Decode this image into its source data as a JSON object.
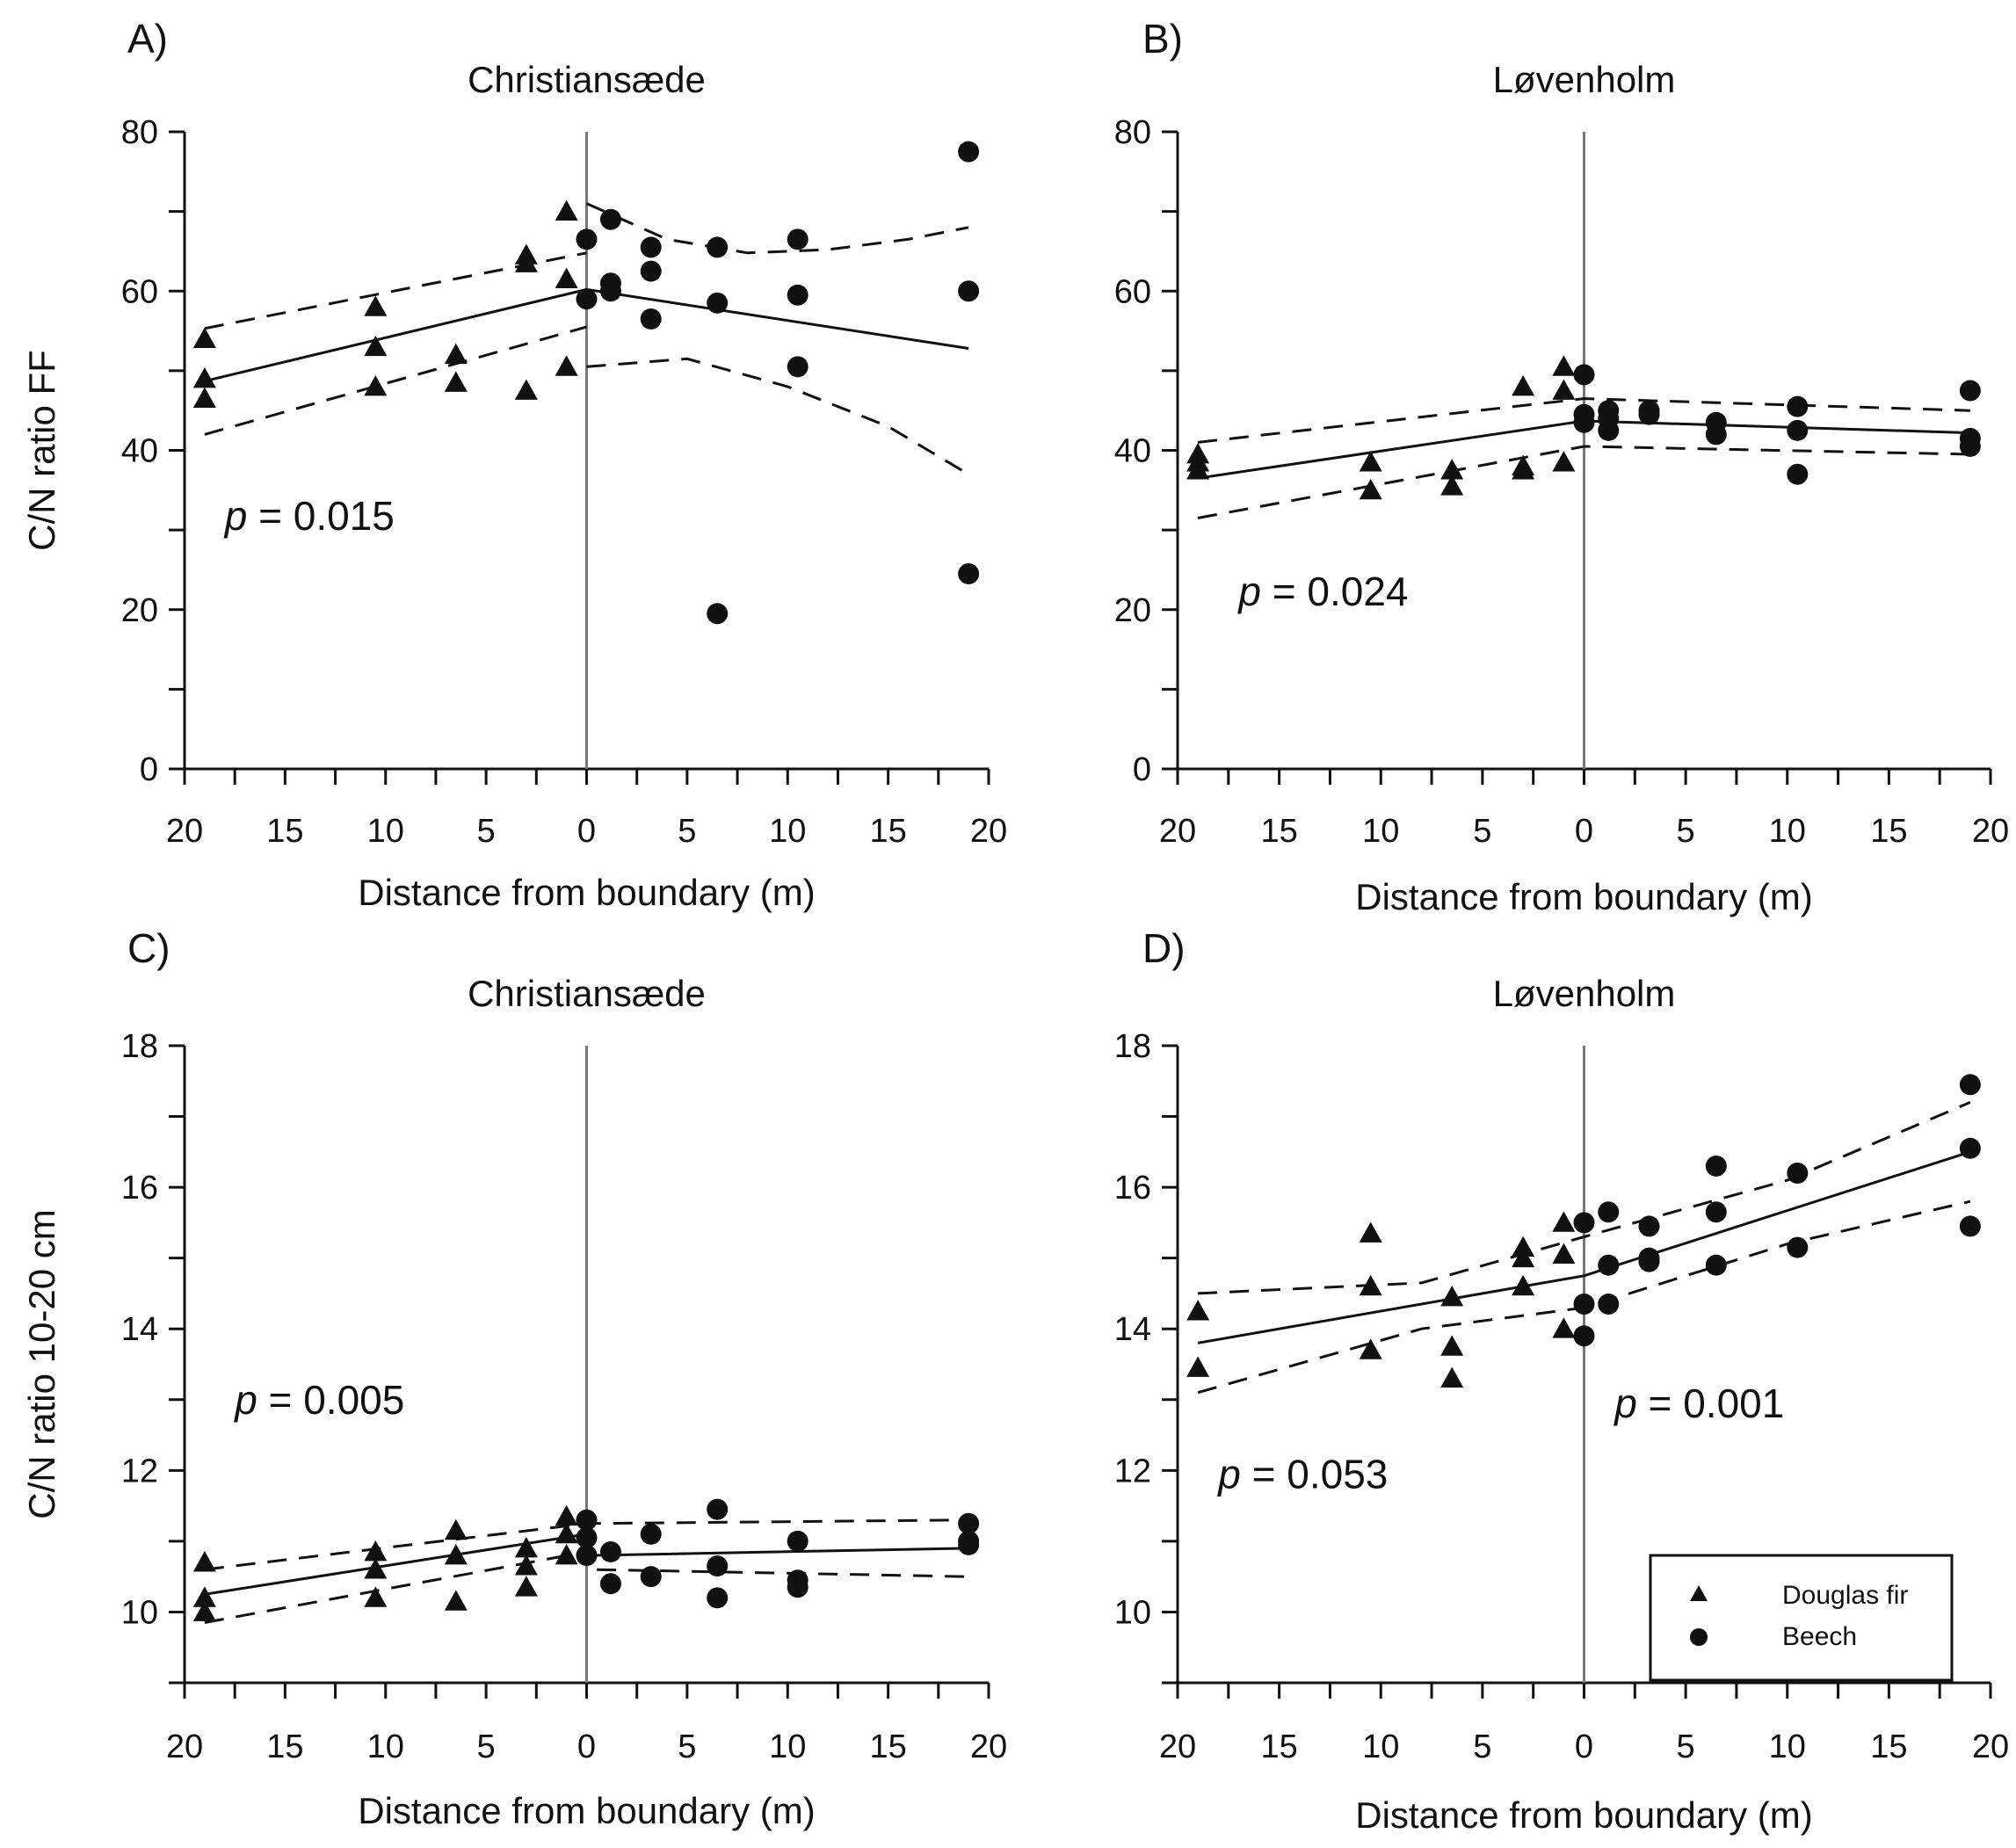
{
  "chart_data": [
    {
      "type": "scatter",
      "panel_label": "A)",
      "title": "Christiansæde",
      "ylabel": "C/N ratio FF",
      "xlabel": "Distance from boundary  (m)",
      "ylim": [
        0,
        80
      ],
      "yticks": [
        0,
        20,
        40,
        60,
        80
      ],
      "xlim": [
        -20,
        20
      ],
      "xtick_labels": [
        "20",
        "15",
        "10",
        "5",
        "0",
        "5",
        "10",
        "15",
        "20"
      ],
      "p_labels": [
        {
          "prefix": "p",
          "text": " = 0.015",
          "x": -18,
          "y": 30
        }
      ],
      "series": [
        {
          "name": "Douglas fir",
          "marker": "triangle",
          "points": [
            [
              -19,
              54
            ],
            [
              -19,
              49
            ],
            [
              -19,
              46.5
            ],
            [
              -10.5,
              58
            ],
            [
              -10.5,
              53
            ],
            [
              -10.5,
              48
            ],
            [
              -6.5,
              52
            ],
            [
              -6.5,
              48.5
            ],
            [
              -3,
              64.5
            ],
            [
              -3,
              63.5
            ],
            [
              -3,
              47.5
            ],
            [
              -1,
              70
            ],
            [
              -1,
              61.5
            ],
            [
              -1,
              50.5
            ]
          ]
        },
        {
          "name": "Beech",
          "marker": "circle",
          "points": [
            [
              0,
              66.5
            ],
            [
              0,
              59
            ],
            [
              1.2,
              69
            ],
            [
              1.2,
              61
            ],
            [
              1.2,
              60
            ],
            [
              3.2,
              65.5
            ],
            [
              3.2,
              62.5
            ],
            [
              3.2,
              56.5
            ],
            [
              6.5,
              65.5
            ],
            [
              6.5,
              58.5
            ],
            [
              6.5,
              19.5
            ],
            [
              10.5,
              66.5
            ],
            [
              10.5,
              59.5
            ],
            [
              10.5,
              50.5
            ],
            [
              19,
              77.5
            ],
            [
              19,
              60
            ],
            [
              19,
              24.5
            ]
          ]
        }
      ],
      "fits": [
        {
          "style": "solid",
          "points": [
            [
              -19,
              48.7
            ],
            [
              0,
              60.2
            ],
            [
              19,
              52.8
            ]
          ]
        },
        {
          "style": "dashed",
          "points": [
            [
              -19,
              55.3
            ],
            [
              0,
              64.8
            ]
          ]
        },
        {
          "style": "dashed",
          "points": [
            [
              -19,
              42
            ],
            [
              0,
              55.5
            ]
          ]
        },
        {
          "style": "dashed",
          "points": [
            [
              0,
              71
            ],
            [
              4,
              66.5
            ],
            [
              8,
              64.8
            ],
            [
              12,
              65.2
            ],
            [
              16,
              66.5
            ],
            [
              19,
              68
            ]
          ]
        },
        {
          "style": "dashed",
          "points": [
            [
              0,
              50.5
            ],
            [
              5,
              51.5
            ],
            [
              10,
              48
            ],
            [
              15,
              43
            ],
            [
              19,
              37
            ]
          ]
        }
      ]
    },
    {
      "type": "scatter",
      "panel_label": "B)",
      "title": "Løvenholm",
      "xlabel": "Distance from boundary  (m)",
      "ylim": [
        0,
        80
      ],
      "yticks": [
        0,
        20,
        40,
        60,
        80
      ],
      "xlim": [
        -20,
        20
      ],
      "xtick_labels": [
        "20",
        "15",
        "10",
        "5",
        "0",
        "5",
        "10",
        "15",
        "20"
      ],
      "p_labels": [
        {
          "prefix": "p",
          "text": " = 0.024",
          "x": -17,
          "y": 20.5
        }
      ],
      "series": [
        {
          "name": "Douglas fir",
          "marker": "triangle",
          "points": [
            [
              -19,
              39.5
            ],
            [
              -19,
              38.5
            ],
            [
              -19,
              37.5
            ],
            [
              -10.5,
              38.5
            ],
            [
              -10.5,
              35
            ],
            [
              -6.5,
              37.5
            ],
            [
              -6.5,
              35.5
            ],
            [
              -3,
              48
            ],
            [
              -3,
              38
            ],
            [
              -3,
              37.5
            ],
            [
              -1,
              50.5
            ],
            [
              -1,
              47.5
            ],
            [
              -1,
              38.5
            ]
          ]
        },
        {
          "name": "Beech",
          "marker": "circle",
          "points": [
            [
              0,
              49.5
            ],
            [
              0,
              44.5
            ],
            [
              0,
              43.5
            ],
            [
              1.2,
              45
            ],
            [
              1.2,
              44
            ],
            [
              1.2,
              42.5
            ],
            [
              3.2,
              45
            ],
            [
              3.2,
              44.5
            ],
            [
              6.5,
              43.5
            ],
            [
              6.5,
              42
            ],
            [
              10.5,
              45.5
            ],
            [
              10.5,
              42.5
            ],
            [
              10.5,
              37
            ],
            [
              19,
              47.5
            ],
            [
              19,
              41.5
            ],
            [
              19,
              40.5
            ]
          ]
        }
      ],
      "fits": [
        {
          "style": "solid",
          "points": [
            [
              -19,
              36.5
            ],
            [
              0,
              43.7
            ],
            [
              19,
              42.2
            ]
          ]
        },
        {
          "style": "dashed",
          "points": [
            [
              -19,
              41
            ],
            [
              0,
              46.5
            ],
            [
              19,
              45
            ]
          ]
        },
        {
          "style": "dashed",
          "points": [
            [
              -19,
              31.5
            ],
            [
              0,
              40.5
            ],
            [
              19,
              39.5
            ]
          ]
        }
      ]
    },
    {
      "type": "scatter",
      "panel_label": "C)",
      "title": "Christiansæde",
      "ylabel": "C/N ratio 10-20 cm",
      "xlabel": "Distance from boundary  (m)",
      "ylim": [
        9,
        18
      ],
      "yticks": [
        10,
        12,
        14,
        16,
        18
      ],
      "xlim": [
        -20,
        20
      ],
      "xtick_labels": [
        "20",
        "15",
        "10",
        "5",
        "0",
        "5",
        "10",
        "15",
        "20"
      ],
      "p_labels": [
        {
          "prefix": "p",
          "text": " = 0.005",
          "x": -17.5,
          "y": 12.8
        }
      ],
      "series": [
        {
          "name": "Douglas fir",
          "marker": "triangle",
          "points": [
            [
              -19,
              10.7
            ],
            [
              -19,
              10.2
            ],
            [
              -19,
              10
            ],
            [
              -10.5,
              10.85
            ],
            [
              -10.5,
              10.6
            ],
            [
              -10.5,
              10.2
            ],
            [
              -6.5,
              11.15
            ],
            [
              -6.5,
              10.8
            ],
            [
              -6.5,
              10.15
            ],
            [
              -3,
              10.9
            ],
            [
              -3,
              10.65
            ],
            [
              -3,
              10.35
            ],
            [
              -1,
              11.35
            ],
            [
              -1,
              11.1
            ],
            [
              -1,
              10.8
            ]
          ]
        },
        {
          "name": "Beech",
          "marker": "circle",
          "points": [
            [
              0,
              11.3
            ],
            [
              0,
              11.05
            ],
            [
              0,
              10.8
            ],
            [
              1.2,
              10.85
            ],
            [
              1.2,
              10.4
            ],
            [
              3.2,
              11.1
            ],
            [
              3.2,
              10.5
            ],
            [
              6.5,
              11.45
            ],
            [
              6.5,
              10.65
            ],
            [
              6.5,
              10.2
            ],
            [
              10.5,
              11
            ],
            [
              10.5,
              10.45
            ],
            [
              10.5,
              10.35
            ],
            [
              19,
              11.25
            ],
            [
              19,
              11
            ],
            [
              19,
              10.95
            ]
          ]
        }
      ],
      "fits": [
        {
          "style": "solid",
          "points": [
            [
              -19,
              10.25
            ],
            [
              0,
              11.1
            ],
            [
              0.3,
              10.8
            ],
            [
              19,
              10.9
            ]
          ]
        },
        {
          "style": "dashed",
          "points": [
            [
              -19,
              10.6
            ],
            [
              0,
              11.25
            ],
            [
              19,
              11.3
            ]
          ]
        },
        {
          "style": "dashed",
          "points": [
            [
              -19,
              9.85
            ],
            [
              0,
              10.85
            ],
            [
              0.3,
              10.6
            ],
            [
              19,
              10.5
            ]
          ]
        }
      ]
    },
    {
      "type": "scatter",
      "panel_label": "D)",
      "title": "Løvenholm",
      "xlabel": "Distance from boundary  (m)",
      "ylim": [
        9,
        18
      ],
      "yticks": [
        10,
        12,
        14,
        16,
        18
      ],
      "xlim": [
        -20,
        20
      ],
      "xtick_labels": [
        "20",
        "15",
        "10",
        "5",
        "0",
        "5",
        "10",
        "15",
        "20"
      ],
      "p_labels": [
        {
          "prefix": "p",
          "text": " = 0.001",
          "x": 1.5,
          "y": 12.75
        },
        {
          "prefix": "p",
          "text": " = 0.053",
          "x": -18,
          "y": 11.75
        }
      ],
      "legend": {
        "position": "lower-right",
        "entries": [
          "Douglas fir",
          "Beech"
        ]
      },
      "series": [
        {
          "name": "Douglas fir",
          "marker": "triangle",
          "points": [
            [
              -19,
              14.25
            ],
            [
              -19,
              13.45
            ],
            [
              -10.5,
              15.35
            ],
            [
              -10.5,
              14.6
            ],
            [
              -10.5,
              13.7
            ],
            [
              -6.5,
              14.45
            ],
            [
              -6.5,
              13.75
            ],
            [
              -6.5,
              13.3
            ],
            [
              -3,
              15.15
            ],
            [
              -3,
              15
            ],
            [
              -3,
              14.6
            ],
            [
              -1,
              15.5
            ],
            [
              -1,
              15.05
            ],
            [
              -1,
              14
            ]
          ]
        },
        {
          "name": "Beech",
          "marker": "circle",
          "points": [
            [
              0,
              15.5
            ],
            [
              0,
              14.35
            ],
            [
              0,
              13.9
            ],
            [
              1.2,
              15.65
            ],
            [
              1.2,
              14.9
            ],
            [
              1.2,
              14.35
            ],
            [
              3.2,
              15.45
            ],
            [
              3.2,
              15
            ],
            [
              3.2,
              14.95
            ],
            [
              6.5,
              16.3
            ],
            [
              6.5,
              15.65
            ],
            [
              6.5,
              14.9
            ],
            [
              10.5,
              16.2
            ],
            [
              10.5,
              15.15
            ],
            [
              19,
              17.45
            ],
            [
              19,
              16.55
            ],
            [
              19,
              15.45
            ]
          ]
        }
      ],
      "fits": [
        {
          "style": "solid",
          "points": [
            [
              -19,
              13.8
            ],
            [
              0,
              14.75
            ],
            [
              19,
              16.5
            ]
          ]
        },
        {
          "style": "dashed",
          "points": [
            [
              -19,
              14.5
            ],
            [
              -8,
              14.65
            ],
            [
              0,
              15.3
            ],
            [
              10,
              16.1
            ],
            [
              19,
              17.2
            ]
          ]
        },
        {
          "style": "dashed",
          "points": [
            [
              -19,
              13.1
            ],
            [
              -8,
              14
            ],
            [
              0,
              14.3
            ],
            [
              10,
              15.2
            ],
            [
              19,
              15.8
            ]
          ]
        }
      ]
    }
  ]
}
